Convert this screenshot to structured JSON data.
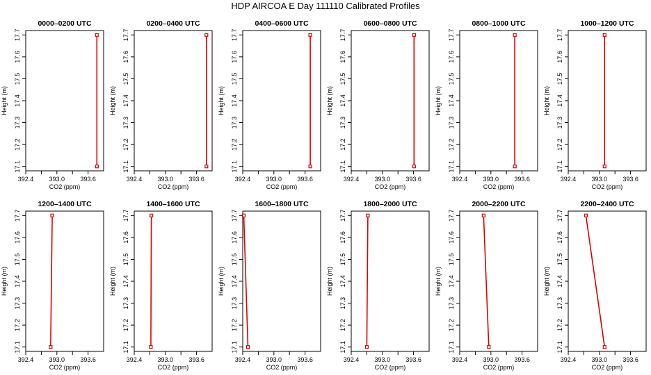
{
  "title": "HDP AIRCOA E  Day 111110  Calibrated Profiles",
  "colors": {
    "profile": "#dd0000",
    "axis": "#000000"
  },
  "chart_data": [
    {
      "type": "line",
      "title": "0000–0200 UTC",
      "xlabel": "CO2 (ppm)",
      "ylabel": "Height (m)",
      "xlim": [
        392.4,
        393.9
      ],
      "ylim": [
        17.08,
        17.72
      ],
      "xticks": [
        "392.4",
        "393.0",
        "393.6"
      ],
      "yticks": [
        "17.1",
        "17.2",
        "17.3",
        "17.4",
        "17.5",
        "17.6",
        "17.7"
      ],
      "grid": false,
      "series": [
        {
          "x": [
            393.77,
            393.77
          ],
          "y": [
            17.1,
            17.7
          ]
        }
      ]
    },
    {
      "type": "line",
      "title": "0200–0400 UTC",
      "xlabel": "CO2 (ppm)",
      "ylabel": "Height (m)",
      "xlim": [
        392.4,
        393.9
      ],
      "ylim": [
        17.08,
        17.72
      ],
      "xticks": [
        "392.4",
        "393.0",
        "393.6"
      ],
      "yticks": [
        "17.1",
        "17.2",
        "17.3",
        "17.4",
        "17.5",
        "17.6",
        "17.7"
      ],
      "grid": false,
      "series": [
        {
          "x": [
            393.79,
            393.79
          ],
          "y": [
            17.1,
            17.7
          ]
        }
      ]
    },
    {
      "type": "line",
      "title": "0400–0600 UTC",
      "xlabel": "CO2 (ppm)",
      "ylabel": "Height (m)",
      "xlim": [
        392.4,
        393.9
      ],
      "ylim": [
        17.08,
        17.72
      ],
      "xticks": [
        "392.4",
        "393.0",
        "393.6"
      ],
      "yticks": [
        "17.1",
        "17.2",
        "17.3",
        "17.4",
        "17.5",
        "17.6",
        "17.7"
      ],
      "grid": false,
      "series": [
        {
          "x": [
            393.7,
            393.7
          ],
          "y": [
            17.1,
            17.7
          ]
        }
      ]
    },
    {
      "type": "line",
      "title": "0600–0800 UTC",
      "xlabel": "CO2 (ppm)",
      "ylabel": "Height (m)",
      "xlim": [
        392.4,
        393.9
      ],
      "ylim": [
        17.08,
        17.72
      ],
      "xticks": [
        "392.4",
        "393.0",
        "393.6"
      ],
      "yticks": [
        "17.1",
        "17.2",
        "17.3",
        "17.4",
        "17.5",
        "17.6",
        "17.7"
      ],
      "grid": false,
      "series": [
        {
          "x": [
            393.61,
            393.61
          ],
          "y": [
            17.1,
            17.7
          ]
        }
      ]
    },
    {
      "type": "line",
      "title": "0800–1000 UTC",
      "xlabel": "CO2 (ppm)",
      "ylabel": "Height (m)",
      "xlim": [
        392.4,
        393.9
      ],
      "ylim": [
        17.08,
        17.72
      ],
      "xticks": [
        "392.4",
        "393.0",
        "393.6"
      ],
      "yticks": [
        "17.1",
        "17.2",
        "17.3",
        "17.4",
        "17.5",
        "17.6",
        "17.7"
      ],
      "grid": false,
      "series": [
        {
          "x": [
            393.46,
            393.46
          ],
          "y": [
            17.1,
            17.7
          ]
        }
      ]
    },
    {
      "type": "line",
      "title": "1000–1200 UTC",
      "xlabel": "CO2 (ppm)",
      "ylabel": "Height (m)",
      "xlim": [
        392.4,
        393.9
      ],
      "ylim": [
        17.08,
        17.72
      ],
      "xticks": [
        "392.4",
        "393.0",
        "393.6"
      ],
      "yticks": [
        "17.1",
        "17.2",
        "17.3",
        "17.4",
        "17.5",
        "17.6",
        "17.7"
      ],
      "grid": false,
      "series": [
        {
          "x": [
            393.1,
            393.1
          ],
          "y": [
            17.1,
            17.7
          ]
        }
      ]
    },
    {
      "type": "line",
      "title": "1200–1400 UTC",
      "xlabel": "CO2 (ppm)",
      "ylabel": "Height (m)",
      "xlim": [
        392.4,
        393.9
      ],
      "ylim": [
        17.08,
        17.72
      ],
      "xticks": [
        "392.4",
        "393.0",
        "393.6"
      ],
      "yticks": [
        "17.1",
        "17.2",
        "17.3",
        "17.4",
        "17.5",
        "17.6",
        "17.7"
      ],
      "grid": false,
      "series": [
        {
          "x": [
            392.88,
            392.91
          ],
          "y": [
            17.1,
            17.7
          ]
        }
      ]
    },
    {
      "type": "line",
      "title": "1400–1600 UTC",
      "xlabel": "CO2 (ppm)",
      "ylabel": "Height (m)",
      "xlim": [
        392.4,
        393.9
      ],
      "ylim": [
        17.08,
        17.72
      ],
      "xticks": [
        "392.4",
        "393.0",
        "393.6"
      ],
      "yticks": [
        "17.1",
        "17.2",
        "17.3",
        "17.4",
        "17.5",
        "17.6",
        "17.7"
      ],
      "grid": false,
      "series": [
        {
          "x": [
            392.72,
            392.73
          ],
          "y": [
            17.1,
            17.7
          ]
        }
      ]
    },
    {
      "type": "line",
      "title": "1600–1800 UTC",
      "xlabel": "CO2 (ppm)",
      "ylabel": "Height (m)",
      "xlim": [
        392.4,
        393.9
      ],
      "ylim": [
        17.08,
        17.72
      ],
      "xticks": [
        "392.4",
        "393.0",
        "393.6"
      ],
      "yticks": [
        "17.1",
        "17.2",
        "17.3",
        "17.4",
        "17.5",
        "17.6",
        "17.7"
      ],
      "grid": false,
      "series": [
        {
          "x": [
            392.5,
            392.42
          ],
          "y": [
            17.1,
            17.7
          ]
        }
      ]
    },
    {
      "type": "line",
      "title": "1800–2000 UTC",
      "xlabel": "CO2 (ppm)",
      "ylabel": "Height (m)",
      "xlim": [
        392.4,
        393.9
      ],
      "ylim": [
        17.08,
        17.72
      ],
      "xticks": [
        "392.4",
        "393.0",
        "393.6"
      ],
      "yticks": [
        "17.1",
        "17.2",
        "17.3",
        "17.4",
        "17.5",
        "17.6",
        "17.7"
      ],
      "grid": false,
      "series": [
        {
          "x": [
            392.7,
            392.72
          ],
          "y": [
            17.1,
            17.7
          ]
        }
      ]
    },
    {
      "type": "line",
      "title": "2000–2200 UTC",
      "xlabel": "CO2 (ppm)",
      "ylabel": "Height (m)",
      "xlim": [
        392.4,
        393.9
      ],
      "ylim": [
        17.08,
        17.72
      ],
      "xticks": [
        "392.4",
        "393.0",
        "393.6"
      ],
      "yticks": [
        "17.1",
        "17.2",
        "17.3",
        "17.4",
        "17.5",
        "17.6",
        "17.7"
      ],
      "grid": false,
      "series": [
        {
          "x": [
            392.96,
            392.86
          ],
          "y": [
            17.1,
            17.7
          ]
        }
      ]
    },
    {
      "type": "line",
      "title": "2200–2400 UTC",
      "xlabel": "CO2 (ppm)",
      "ylabel": "Height (m)",
      "xlim": [
        392.4,
        393.9
      ],
      "ylim": [
        17.08,
        17.72
      ],
      "xticks": [
        "392.4",
        "393.0",
        "393.6"
      ],
      "yticks": [
        "17.1",
        "17.2",
        "17.3",
        "17.4",
        "17.5",
        "17.6",
        "17.7"
      ],
      "grid": false,
      "series": [
        {
          "x": [
            393.1,
            392.74
          ],
          "y": [
            17.1,
            17.7
          ]
        }
      ]
    }
  ]
}
